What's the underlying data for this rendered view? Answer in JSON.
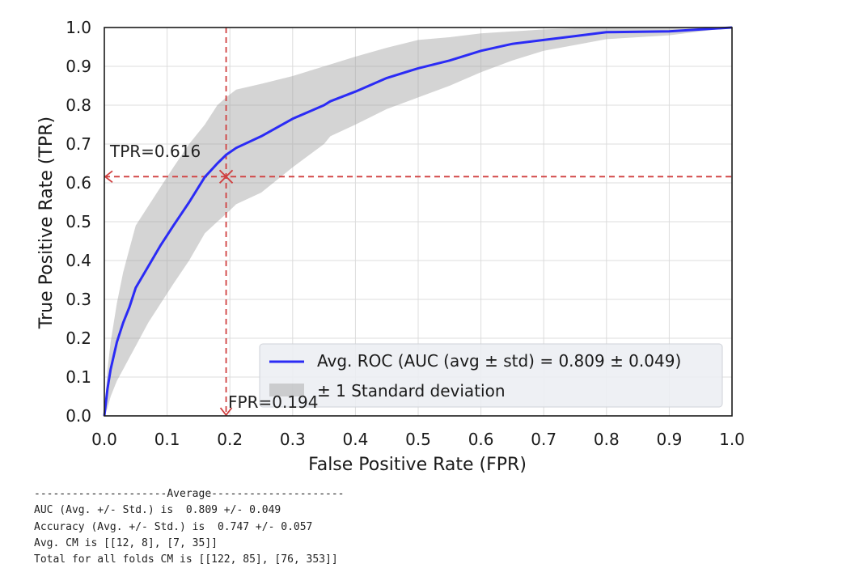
{
  "chart_data": {
    "type": "line",
    "xlabel": "False Positive Rate (FPR)",
    "ylabel": "True Positive Rate (TPR)",
    "xlim": [
      0.0,
      1.0
    ],
    "ylim": [
      0.0,
      1.0
    ],
    "xticks": [
      "0.0",
      "0.1",
      "0.2",
      "0.3",
      "0.4",
      "0.5",
      "0.6",
      "0.7",
      "0.8",
      "0.9",
      "1.0"
    ],
    "yticks": [
      "0.0",
      "0.1",
      "0.2",
      "0.3",
      "0.4",
      "0.5",
      "0.6",
      "0.7",
      "0.8",
      "0.9",
      "1.0"
    ],
    "grid": true,
    "legend_position": "lower-right",
    "series": [
      {
        "name": "Avg. ROC (AUC (avg ± std) = 0.809 ± 0.049)",
        "color": "#2b2bf5",
        "x": [
          0.0,
          0.005,
          0.01,
          0.02,
          0.03,
          0.04,
          0.05,
          0.07,
          0.09,
          0.11,
          0.135,
          0.16,
          0.18,
          0.194,
          0.21,
          0.25,
          0.3,
          0.35,
          0.36,
          0.4,
          0.45,
          0.5,
          0.55,
          0.6,
          0.65,
          0.7,
          0.75,
          0.8,
          0.9,
          1.0
        ],
        "y": [
          0.0,
          0.07,
          0.12,
          0.19,
          0.24,
          0.28,
          0.33,
          0.385,
          0.44,
          0.49,
          0.55,
          0.615,
          0.65,
          0.672,
          0.69,
          0.72,
          0.765,
          0.8,
          0.81,
          0.835,
          0.87,
          0.895,
          0.915,
          0.94,
          0.958,
          0.968,
          0.978,
          0.988,
          0.99,
          1.0
        ]
      },
      {
        "name": "± 1 Standard deviation",
        "type": "area",
        "color": "#a0a0a0",
        "x": [
          0.0,
          0.005,
          0.01,
          0.02,
          0.03,
          0.04,
          0.05,
          0.07,
          0.09,
          0.11,
          0.135,
          0.16,
          0.18,
          0.194,
          0.21,
          0.25,
          0.3,
          0.35,
          0.36,
          0.4,
          0.45,
          0.5,
          0.55,
          0.6,
          0.65,
          0.7,
          0.75,
          0.8,
          0.9,
          1.0
        ],
        "upper": [
          0.0,
          0.12,
          0.19,
          0.29,
          0.37,
          0.43,
          0.49,
          0.54,
          0.59,
          0.64,
          0.7,
          0.75,
          0.8,
          0.82,
          0.84,
          0.855,
          0.875,
          0.9,
          0.905,
          0.925,
          0.948,
          0.968,
          0.975,
          0.985,
          0.99,
          0.995,
          0.998,
          1.0,
          1.0,
          1.0
        ],
        "lower": [
          0.0,
          0.02,
          0.05,
          0.09,
          0.12,
          0.15,
          0.18,
          0.24,
          0.29,
          0.34,
          0.4,
          0.47,
          0.5,
          0.52,
          0.545,
          0.575,
          0.64,
          0.7,
          0.72,
          0.75,
          0.79,
          0.82,
          0.85,
          0.885,
          0.915,
          0.94,
          0.955,
          0.97,
          0.98,
          1.0
        ]
      }
    ],
    "annotations": {
      "tpr_value": 0.616,
      "tpr_label": "TPR=0.616",
      "fpr_value": 0.194,
      "fpr_label": "FPR=0.194",
      "color": "#d04040"
    }
  },
  "console": {
    "lines": [
      "---------------------Average---------------------",
      "AUC (Avg. +/- Std.) is  0.809 +/- 0.049",
      "Accuracy (Avg. +/- Std.) is  0.747 +/- 0.057",
      "Avg. CM is [[12, 8], [7, 35]]",
      "Total for all folds CM is [[122, 85], [76, 353]]"
    ]
  }
}
